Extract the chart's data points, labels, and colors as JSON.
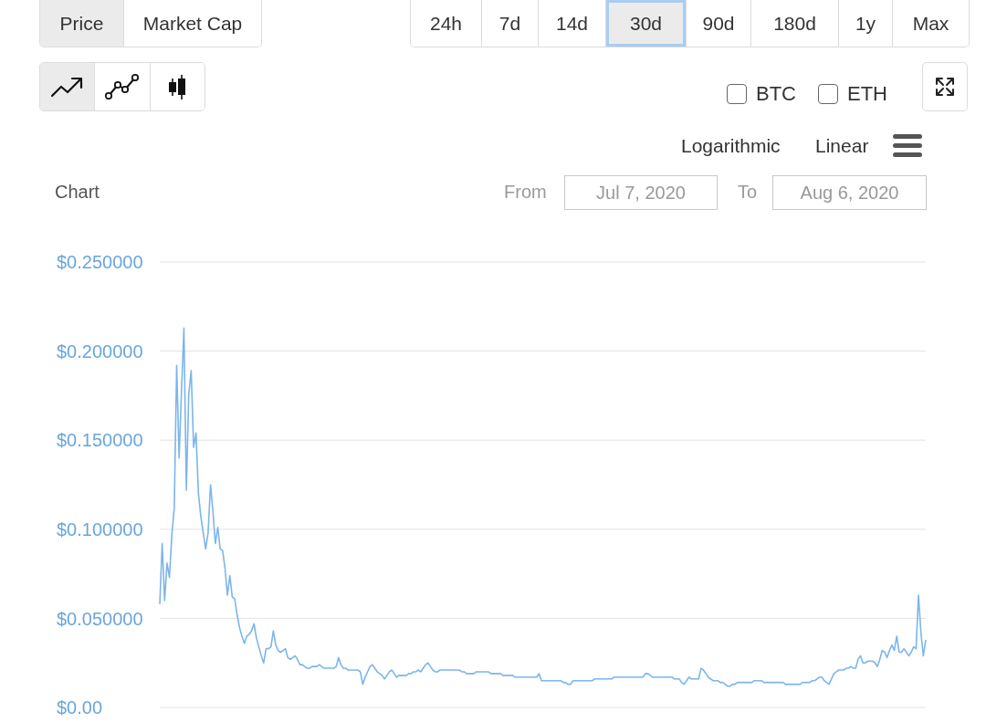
{
  "chart_data": {
    "type": "line",
    "title": "Chart",
    "annotations": [
      "Price",
      "Market Cap",
      "24h",
      "7d",
      "14d",
      "30d",
      "90d",
      "180d",
      "1y",
      "Max",
      "BTC",
      "ETH",
      "Logarithmic",
      "Linear",
      "From",
      "Jul 7, 2020",
      "To",
      "Aug 6, 2020"
    ],
    "categories": [
      null,
      null,
      null,
      null,
      null,
      null,
      null,
      null,
      null,
      null,
      null,
      null,
      null,
      null,
      null,
      null,
      null,
      null,
      null,
      null,
      null,
      null,
      null,
      null,
      null,
      null,
      null,
      null,
      null,
      null,
      null,
      null,
      null,
      null,
      null,
      null,
      null,
      null,
      null,
      null,
      null,
      null,
      null,
      null,
      null,
      null,
      null,
      null,
      null,
      null,
      null,
      null,
      null,
      null,
      null,
      null,
      null,
      null,
      null,
      null,
      null,
      null,
      null,
      null,
      null,
      null,
      null,
      null,
      null,
      null,
      null,
      null,
      null,
      null,
      null,
      null,
      null,
      null,
      null,
      null,
      null,
      null,
      null,
      null,
      null,
      null,
      null,
      null,
      null,
      null,
      null,
      null,
      null,
      null,
      null,
      null,
      null,
      null,
      null,
      null,
      null,
      null,
      null,
      null,
      null,
      null,
      null,
      null,
      null,
      null,
      null,
      null,
      null,
      null,
      null,
      null,
      null,
      null,
      null,
      null,
      null,
      null,
      null,
      null,
      null,
      null,
      null,
      null,
      null,
      null,
      null,
      null,
      null,
      null,
      null,
      null,
      null,
      null,
      null,
      null,
      null,
      null,
      null,
      null,
      null,
      null,
      null,
      null,
      null,
      null,
      null,
      null,
      null,
      null,
      null,
      null,
      null,
      null,
      null,
      null,
      null,
      null,
      null,
      null,
      null,
      null,
      null,
      null,
      null,
      null,
      null,
      null,
      null,
      null,
      null,
      null,
      null,
      null,
      null,
      null,
      null,
      null,
      null,
      null,
      null,
      null,
      null,
      null,
      null,
      null,
      null,
      null,
      null,
      null,
      null,
      null,
      null,
      null,
      null,
      null,
      null,
      null,
      null,
      null,
      null,
      null,
      null,
      null,
      null,
      null,
      null,
      null,
      null,
      null,
      null,
      null,
      null,
      null,
      null,
      null,
      null,
      null,
      null,
      null,
      null,
      null,
      null,
      null,
      null,
      null,
      null,
      null,
      null,
      null,
      null,
      null,
      null,
      null,
      null,
      null,
      null,
      null,
      null,
      null,
      null,
      null,
      null,
      null,
      null,
      null,
      null,
      null,
      null,
      null,
      null,
      null,
      null,
      null,
      null,
      null,
      null,
      null,
      null,
      null,
      null,
      null,
      null,
      null,
      null,
      null,
      null,
      null,
      null,
      null,
      null,
      null,
      null,
      null,
      null,
      null,
      null,
      null,
      null,
      null,
      null,
      null,
      null,
      null,
      null,
      null,
      null,
      null,
      null,
      null,
      null,
      null,
      null,
      null,
      null,
      null,
      null,
      null,
      null,
      null,
      null,
      null,
      null,
      null,
      null,
      null,
      null,
      null,
      null,
      null,
      null,
      null,
      null,
      null
    ],
    "series": [
      {
        "color": "#7cb5ec",
        "values": [
          0.058,
          0.092,
          0.06,
          0.081,
          0.073,
          0.097,
          0.112,
          0.192,
          0.14,
          0.178,
          0.213,
          0.122,
          0.176,
          0.189,
          0.146,
          0.154,
          0.12,
          0.107,
          0.098,
          0.089,
          0.098,
          0.125,
          0.11,
          0.092,
          0.101,
          0.089,
          0.088,
          0.078,
          0.063,
          0.074,
          0.062,
          0.061,
          0.052,
          0.045,
          0.04,
          0.036,
          0.04,
          0.041,
          0.043,
          0.047,
          0.039,
          0.034,
          0.029,
          0.025,
          0.033,
          0.033,
          0.034,
          0.043,
          0.035,
          0.032,
          0.031,
          0.032,
          0.033,
          0.028,
          0.027,
          0.028,
          0.029,
          0.027,
          0.024,
          0.024,
          0.023,
          0.022,
          0.022,
          0.023,
          0.023,
          0.023,
          0.024,
          0.023,
          0.022,
          0.022,
          0.022,
          0.022,
          0.022,
          0.023,
          0.028,
          0.024,
          0.022,
          0.022,
          0.021,
          0.021,
          0.021,
          0.021,
          0.021,
          0.02,
          0.013,
          0.017,
          0.02,
          0.023,
          0.024,
          0.022,
          0.02,
          0.019,
          0.018,
          0.016,
          0.018,
          0.02,
          0.021,
          0.019,
          0.017,
          0.018,
          0.018,
          0.018,
          0.018,
          0.019,
          0.019,
          0.02,
          0.02,
          0.021,
          0.02,
          0.022,
          0.024,
          0.025,
          0.023,
          0.021,
          0.02,
          0.02,
          0.021,
          0.021,
          0.021,
          0.021,
          0.021,
          0.021,
          0.021,
          0.021,
          0.021,
          0.02,
          0.02,
          0.019,
          0.019,
          0.019,
          0.019,
          0.02,
          0.02,
          0.02,
          0.02,
          0.02,
          0.02,
          0.019,
          0.019,
          0.019,
          0.019,
          0.019,
          0.018,
          0.018,
          0.018,
          0.018,
          0.018,
          0.017,
          0.017,
          0.017,
          0.017,
          0.017,
          0.017,
          0.017,
          0.017,
          0.017,
          0.017,
          0.019,
          0.015,
          0.015,
          0.015,
          0.015,
          0.015,
          0.015,
          0.015,
          0.015,
          0.015,
          0.014,
          0.014,
          0.013,
          0.013,
          0.015,
          0.015,
          0.015,
          0.015,
          0.015,
          0.015,
          0.015,
          0.015,
          0.015,
          0.016,
          0.016,
          0.016,
          0.016,
          0.016,
          0.016,
          0.016,
          0.016,
          0.017,
          0.017,
          0.017,
          0.017,
          0.017,
          0.017,
          0.017,
          0.017,
          0.017,
          0.017,
          0.017,
          0.017,
          0.017,
          0.019,
          0.019,
          0.018,
          0.017,
          0.017,
          0.017,
          0.017,
          0.017,
          0.017,
          0.017,
          0.017,
          0.017,
          0.016,
          0.016,
          0.016,
          0.014,
          0.013,
          0.015,
          0.017,
          0.016,
          0.016,
          0.016,
          0.016,
          0.022,
          0.021,
          0.019,
          0.017,
          0.016,
          0.015,
          0.015,
          0.015,
          0.014,
          0.014,
          0.013,
          0.012,
          0.012,
          0.013,
          0.013,
          0.014,
          0.014,
          0.014,
          0.014,
          0.014,
          0.014,
          0.014,
          0.015,
          0.015,
          0.015,
          0.015,
          0.014,
          0.014,
          0.014,
          0.014,
          0.014,
          0.014,
          0.014,
          0.014,
          0.014,
          0.013,
          0.013,
          0.013,
          0.013,
          0.013,
          0.013,
          0.013,
          0.014,
          0.014,
          0.014,
          0.014,
          0.015,
          0.015,
          0.016,
          0.017,
          0.017,
          0.015,
          0.014,
          0.013,
          0.016,
          0.019,
          0.02,
          0.021,
          0.021,
          0.021,
          0.022,
          0.022,
          0.023,
          0.022,
          0.022,
          0.027,
          0.029,
          0.025,
          0.025,
          0.026,
          0.026,
          0.026,
          0.025,
          0.023,
          0.027,
          0.032,
          0.031,
          0.028,
          0.032,
          0.035,
          0.032,
          0.04,
          0.031,
          0.031,
          0.033,
          0.031,
          0.029,
          0.031,
          0.034,
          0.033,
          0.063,
          0.042,
          0.029,
          0.038
        ]
      }
    ],
    "ylim": [
      0,
      0.25
    ],
    "yticks": [
      {
        "value": 0,
        "label": "$0.00"
      },
      {
        "value": 0.05,
        "label": "$0.050000"
      },
      {
        "value": 0.1,
        "label": "$0.100000"
      },
      {
        "value": 0.15,
        "label": "$0.150000"
      },
      {
        "value": 0.2,
        "label": "$0.200000"
      },
      {
        "value": 0.25,
        "label": "$0.250000"
      }
    ],
    "grid": "y",
    "tick_labels": "y"
  }
}
